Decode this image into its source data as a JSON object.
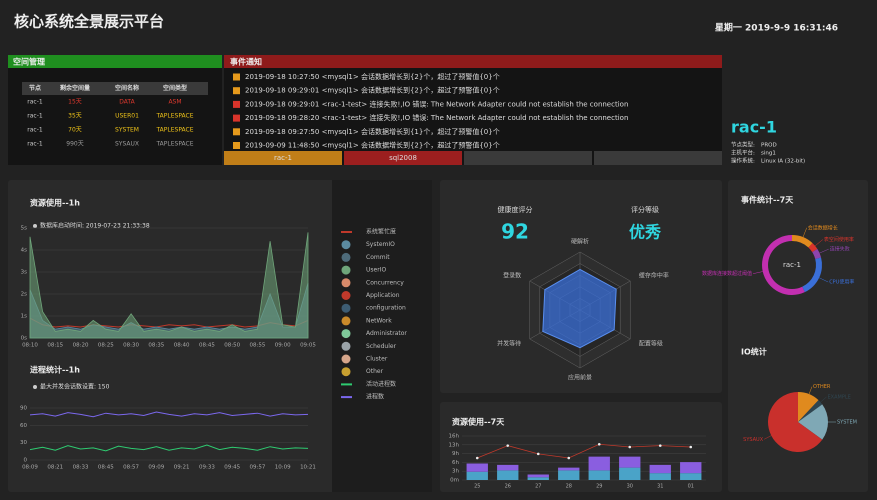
{
  "header": {
    "title": "核心系统全景展示平台",
    "datetime": "星期一 2019-9-9 16:31:46"
  },
  "space": {
    "title": "空间管理",
    "columns": [
      "节点",
      "剩余空间量",
      "空间名称",
      "空间类型"
    ],
    "rows": [
      [
        "rac-1",
        "15天",
        "DATA",
        "ASM"
      ],
      [
        "rac-1",
        "35天",
        "USER01",
        "TAPLESPACE"
      ],
      [
        "rac-1",
        "70天",
        "SYSTEM",
        "TAPLESPACE"
      ],
      [
        "rac-1",
        "990天",
        "SYSAUX",
        "TAPLESPACE"
      ]
    ],
    "row_colors": [
      "#e0392e",
      "#f0c419",
      "#f0c419",
      "#9a9a9a"
    ]
  },
  "events": {
    "title": "事件通知",
    "items": [
      {
        "icon_color": "#e69a1c",
        "text": "2019-09-18 10:27:50  <mysql1> 会话数据增长到{2}个，超过了预警值{0}个"
      },
      {
        "icon_color": "#e69a1c",
        "text": "2019-09-18 09:29:01  <mysql1> 会话数据增长到{2}个，超过了预警值{0}个"
      },
      {
        "icon_color": "#d9342b",
        "text": "2019-09-18 09:29:01  <rac-1-test> 连接失败!,IO 错误: The Network Adapter could not establish the connection"
      },
      {
        "icon_color": "#d9342b",
        "text": "2019-09-18 09:28:20  <rac-1-test> 连接失败!,IO 错误: The Network Adapter could not establish the connection"
      },
      {
        "icon_color": "#e69a1c",
        "text": "2019-09-18 09:27:50  <mysql1> 会话数据增长到{1}个，超过了预警值{0}个"
      },
      {
        "icon_color": "#e69a1c",
        "text": "2019-09-09 11:48:50  <mysql1> 会话数据增长到{2}个，超过了预警值{0}个"
      }
    ],
    "tabs": [
      {
        "label": "rac-1",
        "color": "#c07e18"
      },
      {
        "label": "sql2008",
        "color": "#9c1f1f"
      }
    ]
  },
  "db": {
    "name": "rac-1",
    "fields": [
      [
        "节点类型:",
        "PROD"
      ],
      [
        "主机平台:",
        "sing1"
      ],
      [
        "操作系统:",
        "Linux IA (32-bit)"
      ]
    ]
  },
  "resource_1h": {
    "type": "area",
    "title": "资源使用--1h",
    "subtitle": "数据库启动时间: 2019-07-23 21:33:38",
    "categories": [
      "08:10",
      null,
      "08:15",
      null,
      "08:20",
      null,
      "08:25",
      null,
      "08:30",
      null,
      "08:35",
      null,
      "08:40",
      null,
      "08:45",
      null,
      "08:50",
      null,
      "08:55",
      null,
      "09:00",
      null,
      "09:05"
    ],
    "ylim": [
      0,
      5
    ],
    "yticks": [
      {
        "value": 0,
        "label": "0s"
      },
      {
        "value": 1,
        "label": "1s"
      },
      {
        "value": 2,
        "label": "2s"
      },
      {
        "value": 3,
        "label": "3s"
      },
      {
        "value": 4,
        "label": "4s"
      },
      {
        "value": 5,
        "label": "5s"
      }
    ],
    "series": [
      {
        "name": "系统繁忙度",
        "color": "#c0392b",
        "kind": "line",
        "values": [
          0.9,
          0.6,
          0.5,
          0.55,
          0.5,
          0.6,
          0.55,
          0.5,
          0.6,
          0.55,
          0.5,
          0.6,
          0.55,
          0.6,
          0.5,
          0.55,
          0.6,
          0.5,
          0.55,
          0.7,
          0.6,
          0.55,
          0.8
        ]
      },
      {
        "name": "SystemIO",
        "color": "#5b8aa0",
        "kind": "area",
        "values": [
          2.2,
          0.8,
          0.4,
          0.5,
          0.4,
          0.6,
          0.5,
          0.4,
          0.7,
          0.4,
          0.5,
          0.4,
          0.5,
          0.4,
          0.5,
          0.4,
          0.5,
          0.4,
          0.5,
          2.0,
          0.5,
          0.5,
          2.5
        ]
      },
      {
        "name": "Commit",
        "color": "#4e6b7a"
      },
      {
        "name": "UserIO",
        "color": "#6fa57a",
        "kind": "area",
        "values": [
          4.6,
          1.2,
          0.3,
          0.4,
          0.3,
          0.8,
          0.4,
          0.3,
          1.1,
          0.3,
          0.4,
          0.3,
          0.5,
          0.3,
          0.4,
          0.3,
          0.6,
          0.3,
          0.4,
          4.4,
          0.6,
          0.5,
          4.8
        ]
      },
      {
        "name": "Concurrency",
        "color": "#d88a6a"
      },
      {
        "name": "Application",
        "color": "#c0392b"
      },
      {
        "name": "configuration",
        "color": "#3d5c73"
      },
      {
        "name": "NetWork",
        "color": "#c98a2a"
      },
      {
        "name": "Administrator",
        "color": "#7fc99a"
      },
      {
        "name": "Scheduler",
        "color": "#9aa3a8"
      },
      {
        "name": "Cluster",
        "color": "#d6a58a"
      },
      {
        "name": "Other",
        "color": "#c8a030"
      }
    ]
  },
  "process_1h": {
    "type": "line",
    "title": "进程统计--1h",
    "subtitle": "最大并发会话数设置: 150",
    "categories": [
      "08:09",
      null,
      "08:21",
      null,
      "08:33",
      null,
      "08:45",
      null,
      "08:57",
      null,
      "09:09",
      null,
      "09:21",
      null,
      "09:33",
      null,
      "09:45",
      null,
      "09:57",
      null,
      "10:09",
      null,
      "10:21"
    ],
    "ylim": [
      0,
      90
    ],
    "yticks": [
      0,
      30,
      60,
      90
    ],
    "series": [
      {
        "name": "活动进程数",
        "color": "#2ecc71",
        "values": [
          18,
          22,
          17,
          25,
          19,
          21,
          16,
          24,
          20,
          18,
          23,
          17,
          21,
          19,
          26,
          18,
          22,
          20,
          17,
          23,
          19,
          21,
          20
        ]
      },
      {
        "name": "进程数",
        "color": "#7b68ee",
        "values": [
          78,
          80,
          76,
          82,
          79,
          75,
          81,
          78,
          80,
          77,
          83,
          79,
          76,
          80,
          78,
          82,
          77,
          79,
          81,
          76,
          80,
          78,
          79
        ]
      }
    ]
  },
  "health": {
    "type": "radar",
    "score_label": "健康度评分",
    "score": 92,
    "grade_label": "评分等级",
    "grade": "优秀",
    "axes": [
      "硬解析",
      "缓存命中率",
      "配置等级",
      "应用前景",
      "并发等待",
      "登录数"
    ],
    "values": [
      70,
      72,
      68,
      65,
      74,
      70
    ],
    "rlim": [
      0,
      100
    ],
    "color": "#3a6fd8"
  },
  "resource_7d": {
    "type": "bar",
    "title": "资源使用--7天",
    "categories": [
      "25",
      "26",
      "27",
      "28",
      "29",
      "30",
      "31",
      "01"
    ],
    "ylim": [
      0,
      16
    ],
    "yticks": [
      {
        "value": 0,
        "label": "0m"
      },
      {
        "value": 3.2,
        "label": "3h"
      },
      {
        "value": 6.4,
        "label": "6h"
      },
      {
        "value": 9.6,
        "label": "9h"
      },
      {
        "value": 12.8,
        "label": "13h"
      },
      {
        "value": 16,
        "label": "16h"
      }
    ],
    "series": [
      {
        "color": "#4aa3c8",
        "values": [
          3,
          3.5,
          1,
          3.5,
          3.5,
          4.5,
          2.5,
          2.5
        ]
      },
      {
        "color": "#8a5ee0",
        "values": [
          3,
          2,
          1,
          1,
          5,
          4,
          3,
          4
        ]
      },
      {
        "color": "#c0392b",
        "kind": "line",
        "values": [
          8,
          12.5,
          9.5,
          8,
          13,
          12,
          12.5,
          12
        ]
      }
    ]
  },
  "event_stats": {
    "type": "donut",
    "title": "事件统计--7天",
    "center": "rac-1",
    "categories": [
      "会话数据增长",
      "表空间使用率",
      "连接失败",
      "CPU使用率",
      "数据库连接数超过阈值"
    ],
    "values": [
      12,
      4,
      5,
      22,
      57
    ],
    "colors": [
      "#e08a1e",
      "#d9342b",
      "#8e44ad",
      "#3a6fd8",
      "#c22fb0"
    ]
  },
  "io_stats": {
    "type": "pie",
    "title": "IO统计",
    "categories": [
      "OTHER",
      "EXAMPLE",
      "SYSTEM",
      "SYSAUX"
    ],
    "values": [
      12,
      3,
      20,
      65
    ],
    "colors": [
      "#e08a1e",
      "#2f4550",
      "#7fa8b5",
      "#c9302c"
    ]
  }
}
